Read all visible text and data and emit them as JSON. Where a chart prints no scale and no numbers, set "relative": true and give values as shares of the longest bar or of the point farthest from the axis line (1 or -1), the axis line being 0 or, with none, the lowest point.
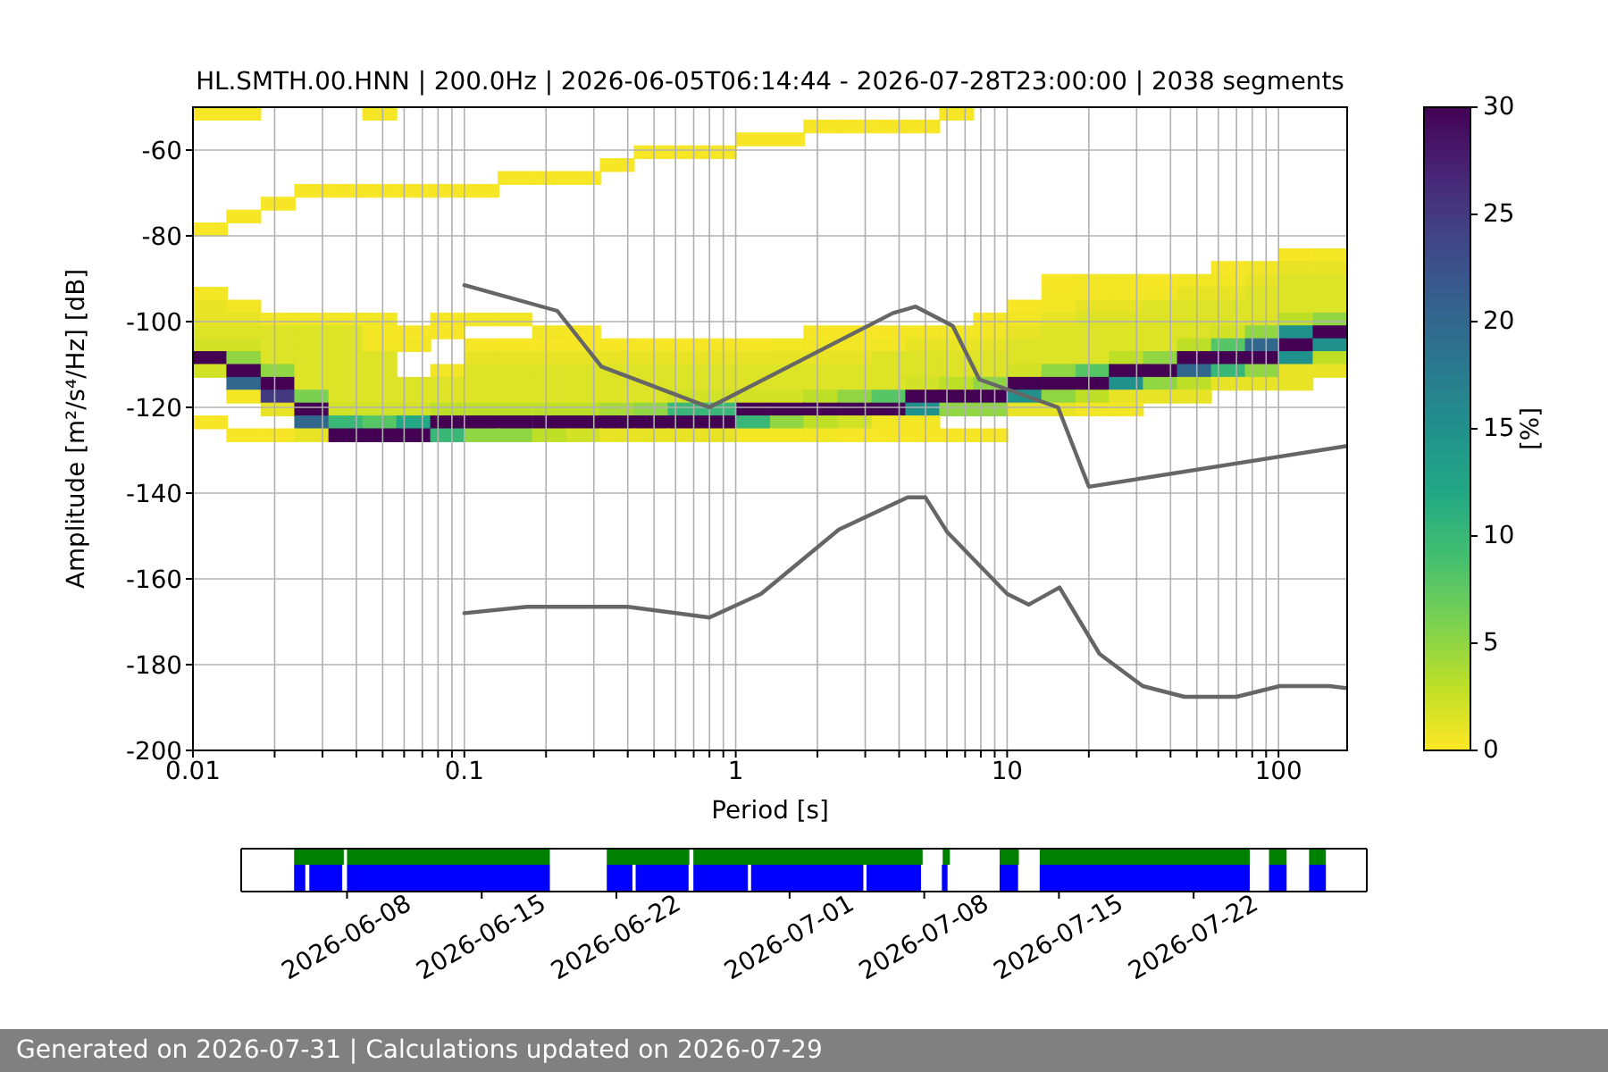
{
  "chart_data": [
    {
      "type": "scatter",
      "title": "HL.SMTH.00.HNN | 200.0Hz | 2026-06-05T06:14:44 - 2026-07-28T23:00:00 | 2038 segments",
      "xlabel": "Period [s]",
      "ylabel": "Amplitude [m²/s⁴/Hz] [dB]",
      "clabel": "[%]",
      "xlim": [
        0.01,
        179
      ],
      "ylim": [
        -200,
        -50
      ],
      "log": "x",
      "xticks": [
        0.01,
        {
          "value": 0.02,
          "label": null
        },
        {
          "value": 0.03,
          "label": null
        },
        {
          "value": 0.04,
          "label": null
        },
        {
          "value": 0.05,
          "label": null
        },
        {
          "value": 0.06,
          "label": null
        },
        {
          "value": 0.07,
          "label": null
        },
        {
          "value": 0.08,
          "label": null
        },
        {
          "value": 0.09,
          "label": null
        },
        0.1,
        {
          "value": 0.2,
          "label": null
        },
        {
          "value": 0.3,
          "label": null
        },
        {
          "value": 0.4,
          "label": null
        },
        {
          "value": 0.5,
          "label": null
        },
        {
          "value": 0.6,
          "label": null
        },
        {
          "value": 0.7,
          "label": null
        },
        {
          "value": 0.8,
          "label": null
        },
        {
          "value": 0.9,
          "label": null
        },
        1,
        {
          "value": 2,
          "label": null
        },
        {
          "value": 3,
          "label": null
        },
        {
          "value": 4,
          "label": null
        },
        {
          "value": 5,
          "label": null
        },
        {
          "value": 6,
          "label": null
        },
        {
          "value": 7,
          "label": null
        },
        {
          "value": 8,
          "label": null
        },
        {
          "value": 9,
          "label": null
        },
        10,
        {
          "value": 20,
          "label": null
        },
        {
          "value": 30,
          "label": null
        },
        {
          "value": 40,
          "label": null
        },
        {
          "value": 50,
          "label": null
        },
        {
          "value": 60,
          "label": null
        },
        {
          "value": 70,
          "label": null
        },
        {
          "value": 80,
          "label": null
        },
        {
          "value": 90,
          "label": null
        },
        100
      ],
      "yticks": [
        -200,
        -180,
        -160,
        -140,
        -120,
        -100,
        -80,
        -60
      ],
      "grid": true,
      "clim": [
        0,
        30
      ],
      "cticks": [
        0,
        5,
        10,
        15,
        20,
        25,
        30
      ],
      "marker": "square",
      "x": [
        0.0116,
        0.0154,
        0.0488,
        6.52,
        2.06,
        2.75,
        3.67,
        4.89,
        1.16,
        1.55,
        0.488,
        0.651,
        0.869,
        0.366,
        0.154,
        0.206,
        0.275,
        0.0274,
        0.0366,
        0.0488,
        0.0651,
        0.0868,
        0.116,
        0.0206,
        0.0154,
        0.0116,
        116,
        155,
        65.4,
        87.2,
        116,
        155,
        15.5,
        20.7,
        27.5,
        36.7,
        49,
        65.4,
        87.2,
        116,
        155,
        0.0116,
        15.5,
        20.7,
        27.5,
        36.7,
        49,
        65.4,
        87.2,
        116,
        155,
        0.0116,
        0.0154,
        11.6,
        15.5,
        20.7,
        27.5,
        36.7,
        49,
        65.4,
        87.2,
        116,
        155,
        0.0116,
        0.0154,
        0.0206,
        0.0274,
        0.0366,
        0.0488,
        0.0868,
        0.116,
        0.154,
        8.7,
        11.6,
        15.5,
        20.7,
        27.5,
        36.7,
        49,
        65.4,
        87.2,
        116,
        155,
        0.0116,
        0.0154,
        0.0206,
        0.0274,
        0.0366,
        0.0488,
        0.0651,
        0.0868,
        0.206,
        0.275,
        2.06,
        2.75,
        3.67,
        4.89,
        6.52,
        8.7,
        11.6,
        15.5,
        20.7,
        27.5,
        36.7,
        49,
        65.4,
        87.2,
        116,
        155,
        0.0116,
        0.0154,
        0.0206,
        0.0274,
        0.0366,
        0.0488,
        0.0651,
        0.116,
        0.154,
        0.206,
        0.275,
        0.366,
        0.488,
        0.651,
        0.869,
        1.16,
        1.55,
        2.06,
        2.75,
        3.67,
        4.89,
        6.52,
        8.7,
        11.6,
        15.5,
        20.7,
        27.5,
        36.7,
        49,
        65.4,
        87.2,
        116,
        155,
        0.0116,
        0.0154,
        0.0206,
        0.0274,
        0.0366,
        0.0488,
        0.116,
        0.154,
        0.206,
        0.275,
        0.366,
        0.488,
        0.651,
        0.869,
        1.16,
        1.55,
        2.06,
        2.75,
        3.67,
        4.89,
        6.52,
        8.7,
        11.6,
        15.5,
        20.7,
        27.5,
        36.7,
        49,
        65.4,
        87.2,
        116,
        155,
        0.0116,
        0.0154,
        0.0206,
        0.0274,
        0.0366,
        0.0488,
        0.0868,
        0.116,
        0.154,
        0.206,
        0.275,
        0.366,
        0.488,
        0.651,
        0.869,
        1.16,
        1.55,
        2.06,
        2.75,
        3.67,
        4.89,
        6.52,
        8.7,
        11.6,
        15.5,
        20.7,
        27.5,
        36.7,
        49,
        65.4,
        87.2,
        116,
        155,
        0.0154,
        0.0206,
        0.0274,
        0.0366,
        0.0488,
        0.0651,
        0.0868,
        0.116,
        0.154,
        0.206,
        0.275,
        0.366,
        0.488,
        0.651,
        0.869,
        1.16,
        1.55,
        2.06,
        2.75,
        3.67,
        4.89,
        6.52,
        8.7,
        11.6,
        15.5,
        20.7,
        27.5,
        36.7,
        49,
        65.4,
        87.2,
        116,
        0.0154,
        0.0206,
        0.0274,
        0.0366,
        0.0488,
        0.0651,
        0.0868,
        0.116,
        0.154,
        0.206,
        0.275,
        0.366,
        0.488,
        0.651,
        0.869,
        1.16,
        1.55,
        2.06,
        2.75,
        3.67,
        4.89,
        6.52,
        8.7,
        11.6,
        15.5,
        20.7,
        27.5,
        36.7,
        49,
        0.0206,
        0.0274,
        0.0366,
        0.0488,
        0.0651,
        0.0868,
        0.116,
        0.154,
        0.206,
        0.275,
        0.366,
        0.488,
        0.651,
        0.869,
        1.16,
        1.55,
        2.06,
        2.75,
        3.67,
        4.89,
        6.52,
        8.7,
        11.6,
        15.5,
        20.7,
        27.5,
        0.0116,
        0.0274,
        0.0366,
        0.0488,
        0.0651,
        0.0868,
        0.116,
        0.154,
        0.206,
        0.275,
        0.366,
        0.488,
        0.651,
        0.869,
        1.16,
        1.55,
        2.06,
        2.75,
        3.67,
        4.89,
        0.0154,
        0.0206,
        0.0274,
        0.0366,
        0.0488,
        0.0651,
        0.0868,
        0.116,
        0.154,
        0.206,
        0.275,
        0.366,
        0.488,
        0.651,
        0.869,
        1.16,
        1.55,
        2.06,
        2.75,
        3.67,
        4.89,
        6.52,
        8.7
      ],
      "values": [
        -51.5,
        -51.5,
        -51.5,
        -51.5,
        -54.5,
        -54.5,
        -54.5,
        -54.5,
        -57.5,
        -57.5,
        -60.5,
        -60.5,
        -60.5,
        -63.5,
        -66.5,
        -66.5,
        -66.5,
        -69.5,
        -69.5,
        -69.5,
        -69.5,
        -69.5,
        -69.5,
        -72.5,
        -75.5,
        -78.5,
        -84.5,
        -84.5,
        -87.5,
        -87.5,
        -87.5,
        -87.5,
        -90.5,
        -90.5,
        -90.5,
        -90.5,
        -90.5,
        -90.5,
        -90.5,
        -90.5,
        -90.5,
        -93.5,
        -93.5,
        -93.5,
        -93.5,
        -93.5,
        -93.5,
        -93.5,
        -93.5,
        -93.5,
        -93.5,
        -96.5,
        -96.5,
        -96.5,
        -96.5,
        -96.5,
        -96.5,
        -96.5,
        -96.5,
        -96.5,
        -96.5,
        -96.5,
        -96.5,
        -99.5,
        -99.5,
        -99.5,
        -99.5,
        -99.5,
        -99.5,
        -99.5,
        -99.5,
        -99.5,
        -99.5,
        -99.5,
        -99.5,
        -99.5,
        -99.5,
        -99.5,
        -99.5,
        -99.5,
        -99.5,
        -99.5,
        -99.5,
        -102.5,
        -102.5,
        -102.5,
        -102.5,
        -102.5,
        -102.5,
        -102.5,
        -102.5,
        -102.5,
        -102.5,
        -102.5,
        -102.5,
        -102.5,
        -102.5,
        -102.5,
        -102.5,
        -102.5,
        -102.5,
        -102.5,
        -102.5,
        -102.5,
        -102.5,
        -102.5,
        -102.5,
        -102.5,
        -102.5,
        -105.5,
        -105.5,
        -105.5,
        -105.5,
        -105.5,
        -105.5,
        -105.5,
        -105.5,
        -105.5,
        -105.5,
        -105.5,
        -105.5,
        -105.5,
        -105.5,
        -105.5,
        -105.5,
        -105.5,
        -105.5,
        -105.5,
        -105.5,
        -105.5,
        -105.5,
        -105.5,
        -105.5,
        -105.5,
        -105.5,
        -105.5,
        -105.5,
        -105.5,
        -105.5,
        -105.5,
        -105.5,
        -105.5,
        -108.5,
        -108.5,
        -108.5,
        -108.5,
        -108.5,
        -108.5,
        -108.5,
        -108.5,
        -108.5,
        -108.5,
        -108.5,
        -108.5,
        -108.5,
        -108.5,
        -108.5,
        -108.5,
        -108.5,
        -108.5,
        -108.5,
        -108.5,
        -108.5,
        -108.5,
        -108.5,
        -108.5,
        -108.5,
        -108.5,
        -108.5,
        -108.5,
        -108.5,
        -108.5,
        -108.5,
        -108.5,
        -111.5,
        -111.5,
        -111.5,
        -111.5,
        -111.5,
        -111.5,
        -111.5,
        -111.5,
        -111.5,
        -111.5,
        -111.5,
        -111.5,
        -111.5,
        -111.5,
        -111.5,
        -111.5,
        -111.5,
        -111.5,
        -111.5,
        -111.5,
        -111.5,
        -111.5,
        -111.5,
        -111.5,
        -111.5,
        -111.5,
        -111.5,
        -111.5,
        -111.5,
        -111.5,
        -111.5,
        -111.5,
        -111.5,
        -114.5,
        -114.5,
        -114.5,
        -114.5,
        -114.5,
        -114.5,
        -114.5,
        -114.5,
        -114.5,
        -114.5,
        -114.5,
        -114.5,
        -114.5,
        -114.5,
        -114.5,
        -114.5,
        -114.5,
        -114.5,
        -114.5,
        -114.5,
        -114.5,
        -114.5,
        -114.5,
        -114.5,
        -114.5,
        -114.5,
        -114.5,
        -114.5,
        -114.5,
        -114.5,
        -114.5,
        -114.5,
        -117.5,
        -117.5,
        -117.5,
        -117.5,
        -117.5,
        -117.5,
        -117.5,
        -117.5,
        -117.5,
        -117.5,
        -117.5,
        -117.5,
        -117.5,
        -117.5,
        -117.5,
        -117.5,
        -117.5,
        -117.5,
        -117.5,
        -117.5,
        -117.5,
        -117.5,
        -117.5,
        -117.5,
        -117.5,
        -117.5,
        -117.5,
        -117.5,
        -117.5,
        -120.5,
        -120.5,
        -120.5,
        -120.5,
        -120.5,
        -120.5,
        -120.5,
        -120.5,
        -120.5,
        -120.5,
        -120.5,
        -120.5,
        -120.5,
        -120.5,
        -120.5,
        -120.5,
        -120.5,
        -120.5,
        -120.5,
        -120.5,
        -120.5,
        -120.5,
        -120.5,
        -120.5,
        -120.5,
        -120.5,
        -123.5,
        -123.5,
        -123.5,
        -123.5,
        -123.5,
        -123.5,
        -123.5,
        -123.5,
        -123.5,
        -123.5,
        -123.5,
        -123.5,
        -123.5,
        -123.5,
        -123.5,
        -123.5,
        -123.5,
        -123.5,
        -123.5,
        -123.5,
        -126.5,
        -126.5,
        -126.5,
        -126.5,
        -126.5,
        -126.5,
        -126.5,
        -126.5,
        -126.5,
        -126.5,
        -126.5,
        -126.5,
        -126.5,
        -126.5,
        -126.5,
        -126.5,
        -126.5,
        -126.5,
        -126.5,
        -126.5,
        -126.5,
        -126.5,
        -126.5
      ],
      "colors": [
        "#f7e625",
        "#f7e625",
        "#f7e625",
        "#f7e625",
        "#f7e625",
        "#f7e625",
        "#f7e625",
        "#f7e625",
        "#f7e625",
        "#f7e625",
        "#f7e625",
        "#f7e625",
        "#f7e625",
        "#f7e625",
        "#f7e625",
        "#f7e625",
        "#f7e625",
        "#f7e625",
        "#f7e625",
        "#f7e625",
        "#f7e625",
        "#f7e625",
        "#f7e625",
        "#f7e625",
        "#f7e625",
        "#f7e625",
        "#f7e625",
        "#f2e625",
        "#f7e625",
        "#f2e625",
        "#e8e425",
        "#e8e425",
        "#f7e625",
        "#f2e625",
        "#f2e625",
        "#f7e625",
        "#f2e625",
        "#f2e625",
        "#e8e425",
        "#dde326",
        "#dde326",
        "#f2e625",
        "#f2e625",
        "#f2e625",
        "#f2e625",
        "#f2e625",
        "#e8e425",
        "#e8e425",
        "#dde326",
        "#dde326",
        "#dde326",
        "#e8e425",
        "#f2e625",
        "#f7e625",
        "#f2e625",
        "#e8e425",
        "#e8e425",
        "#dde326",
        "#dde326",
        "#dde326",
        "#dde326",
        "#dde326",
        "#dde326",
        "#e8e425",
        "#e8e425",
        "#f2e625",
        "#f2e625",
        "#f2e625",
        "#f2e625",
        "#f7e625",
        "#f2e625",
        "#f2e625",
        "#f7e625",
        "#f2e625",
        "#e8e425",
        "#dde326",
        "#dde326",
        "#dde326",
        "#dde326",
        "#dde326",
        "#dde326",
        "#bddf26",
        "#90d643",
        "#dde326",
        "#dde326",
        "#dde326",
        "#dde326",
        "#dde326",
        "#f2e625",
        "#f7e625",
        "#f7e625",
        "#f2e625",
        "#f7e625",
        "#f7e625",
        "#f7e625",
        "#f7e625",
        "#f2e625",
        "#f2e625",
        "#f2e625",
        "#e8e425",
        "#dde326",
        "#dde326",
        "#dde326",
        "#dde326",
        "#dde326",
        "#d2e226",
        "#90d643",
        "#21918c",
        "#440154",
        "#d2e226",
        "#d2e226",
        "#dde326",
        "#dde326",
        "#dde326",
        "#f2e625",
        "#f2e625",
        "#f7e625",
        "#f7e625",
        "#f7e625",
        "#f7e625",
        "#f7e625",
        "#f7e625",
        "#f7e625",
        "#f7e625",
        "#f7e625",
        "#f2e625",
        "#f2e625",
        "#f2e625",
        "#f2e625",
        "#e8e425",
        "#e8e425",
        "#e8e425",
        "#dde326",
        "#dde326",
        "#dde326",
        "#dde326",
        "#dde326",
        "#bddf26",
        "#56c566",
        "#31678d",
        "#440154",
        "#21918c",
        "#440154",
        "#90d643",
        "#dde326",
        "#dde326",
        "#dde326",
        "#dde326",
        "#e8e425",
        "#e8e425",
        "#e8e425",
        "#e8e425",
        "#e8e425",
        "#e8e425",
        "#e8e425",
        "#e8e425",
        "#e8e425",
        "#e8e425",
        "#e8e425",
        "#e8e425",
        "#dde326",
        "#dde326",
        "#dde326",
        "#dde326",
        "#dde326",
        "#dde326",
        "#dde326",
        "#bddf26",
        "#90d643",
        "#440154",
        "#440154",
        "#440154",
        "#21918c",
        "#bddf26",
        "#d2e226",
        "#440154",
        "#90d643",
        "#dde326",
        "#dde326",
        "#dde326",
        "#f2e625",
        "#dde326",
        "#dde326",
        "#dde326",
        "#dde326",
        "#dde326",
        "#dde326",
        "#dde326",
        "#dde326",
        "#dde326",
        "#dde326",
        "#dde326",
        "#dde326",
        "#dde326",
        "#dde326",
        "#dde326",
        "#dde326",
        "#d2e226",
        "#90d643",
        "#56c566",
        "#440154",
        "#440154",
        "#31678d",
        "#39b777",
        "#90d643",
        "#e8e425",
        "#e8e425",
        "#31678d",
        "#440154",
        "#dde326",
        "#dde326",
        "#dde326",
        "#dde326",
        "#dde326",
        "#dde326",
        "#dde326",
        "#dde326",
        "#dde326",
        "#dde326",
        "#dde326",
        "#dde326",
        "#dde326",
        "#dde326",
        "#dde326",
        "#dde326",
        "#dde326",
        "#dde326",
        "#d2e226",
        "#bddf26",
        "#90d643",
        "#440154",
        "#440154",
        "#440154",
        "#21918c",
        "#90d643",
        "#bddf26",
        "#e8e425",
        "#e8e425",
        "#e8e425",
        "#f2e625",
        "#433981",
        "#7ad151",
        "#dde326",
        "#dde326",
        "#dde326",
        "#dde326",
        "#dde326",
        "#dde326",
        "#dde326",
        "#dde326",
        "#dde326",
        "#dde326",
        "#d2e226",
        "#d2e226",
        "#d2e226",
        "#d2e226",
        "#bddf26",
        "#90d643",
        "#56c566",
        "#440154",
        "#440154",
        "#440154",
        "#21918c",
        "#90d643",
        "#bddf26",
        "#e8e425",
        "#e8e425",
        "#e8e425",
        "#e8e425",
        "#440154",
        "#d2e226",
        "#d2e226",
        "#d2e226",
        "#bddf26",
        "#bddf26",
        "#bddf26",
        "#bddf26",
        "#bddf26",
        "#a7da34",
        "#90d643",
        "#39b777",
        "#39b777",
        "#440154",
        "#440154",
        "#440154",
        "#440154",
        "#440154",
        "#21918c",
        "#90d643",
        "#90d643",
        "#e8e425",
        "#e8e425",
        "#f2e625",
        "#f2e625",
        "#f7e625",
        "#31678d",
        "#39b777",
        "#56c566",
        "#22a884",
        "#440154",
        "#440154",
        "#440154",
        "#440154",
        "#440154",
        "#440154",
        "#440154",
        "#440154",
        "#440154",
        "#39b777",
        "#90d643",
        "#bddf26",
        "#d2e226",
        "#f2e625",
        "#f2e625",
        "#f7e625",
        "#f7e625",
        "#e8e425",
        "#440154",
        "#440154",
        "#440154",
        "#39b777",
        "#90d643",
        "#90d643",
        "#bddf26",
        "#d2e226",
        "#e8e425",
        "#e8e425",
        "#e8e425",
        "#e8e425",
        "#f2e625",
        "#f2e625",
        "#f2e625",
        "#f7e625",
        "#f7e625",
        "#f7e625",
        "#f7e625",
        "#f7e625"
      ],
      "series": [
        {
          "type": "line",
          "color": "#666666",
          "marker": "none",
          "x": [
            0.1,
            0.22,
            0.32,
            0.8,
            3.8,
            4.6,
            6.3,
            7.9,
            15.4,
            20,
            179
          ],
          "values": [
            -91.5,
            -97.5,
            -110.5,
            -120,
            -98,
            -96.5,
            -101,
            -113.5,
            -120,
            -138.5,
            -129
          ]
        },
        {
          "type": "line",
          "color": "#666666",
          "marker": "none",
          "x": [
            0.1,
            0.17,
            0.4,
            0.8,
            1.24,
            2.4,
            4.3,
            5,
            6,
            10,
            12,
            15.6,
            21.9,
            31.6,
            45,
            70,
            101,
            154,
            179
          ],
          "values": [
            -168,
            -166.5,
            -166.5,
            -169,
            -163.5,
            -148.5,
            -141,
            -141,
            -149,
            -163.5,
            -166,
            -162,
            -177.5,
            -185,
            -187.5,
            -187.5,
            -185,
            -185,
            -185.5
          ]
        }
      ]
    },
    {
      "type": "area",
      "relative": true,
      "color": "#008000",
      "xlim": [
        "2026-06-02T12:00",
        "2026-07-31T00:00"
      ],
      "tick_labels": false,
      "x": [
        "2026-06-05T06:00",
        "2026-06-05T06:00",
        "2026-06-07T20:00",
        "2026-06-07T20:00",
        "2026-06-08T00:00",
        "2026-06-08T00:00",
        "2026-06-18T13:00",
        "2026-06-18T13:00",
        "2026-06-21T12:00",
        "2026-06-21T12:00",
        "2026-06-25T19:00",
        "2026-06-25T19:00",
        "2026-06-26T00:00",
        "2026-06-26T00:00",
        "2026-07-07T22:00",
        "2026-07-07T22:00",
        "2026-07-08T23:00",
        "2026-07-08T23:00",
        "2026-07-09T08:00",
        "2026-07-09T08:00",
        "2026-07-11T22:00",
        "2026-07-11T22:00",
        "2026-07-12T22:00",
        "2026-07-12T22:00",
        "2026-07-14T00:00",
        "2026-07-14T00:00",
        "2026-07-24T22:00",
        "2026-07-24T22:00",
        "2026-07-25T22:00",
        "2026-07-25T22:00",
        "2026-07-26T20:00",
        "2026-07-26T20:00",
        "2026-07-28T00:00",
        "2026-07-28T00:00",
        "2026-07-28T21:00",
        "2026-07-28T21:00"
      ],
      "values": [
        0,
        1,
        1,
        0,
        0,
        1,
        1,
        0,
        0,
        1,
        1,
        0,
        0,
        1,
        1,
        0,
        0,
        1,
        1,
        0,
        0,
        1,
        1,
        0,
        0,
        1,
        1,
        0,
        0,
        1,
        1,
        0,
        0,
        1,
        1,
        0
      ]
    },
    {
      "type": "area",
      "relative": true,
      "color": "#0000ff",
      "xlim": [
        "2026-06-02T12:00",
        "2026-07-31T00:00"
      ],
      "tick_labels": "x",
      "xticks": [
        "2026-06-08",
        "2026-06-15",
        "2026-06-22",
        "2026-07-01",
        "2026-07-08",
        "2026-07-15",
        "2026-07-22"
      ],
      "x": [
        "2026-06-05T06:00",
        "2026-06-05T06:00",
        "2026-06-05T20:00",
        "2026-06-05T20:00",
        "2026-06-06T01:00",
        "2026-06-06T01:00",
        "2026-06-07T18:00",
        "2026-06-07T18:00",
        "2026-06-08T00:00",
        "2026-06-08T00:00",
        "2026-06-18T13:00",
        "2026-06-18T13:00",
        "2026-06-21T12:00",
        "2026-06-21T12:00",
        "2026-06-22T20:00",
        "2026-06-22T20:00",
        "2026-06-23T00:00",
        "2026-06-23T00:00",
        "2026-06-25T18:00",
        "2026-06-25T18:00",
        "2026-06-26T00:00",
        "2026-06-26T00:00",
        "2026-06-28T20:00",
        "2026-06-28T20:00",
        "2026-06-29T00:00",
        "2026-06-29T00:00",
        "2026-07-04T20:00",
        "2026-07-04T20:00",
        "2026-07-05T00:00",
        "2026-07-05T00:00",
        "2026-07-07T20:00",
        "2026-07-07T20:00",
        "2026-07-08T22:00",
        "2026-07-08T22:00",
        "2026-07-09T05:00",
        "2026-07-09T05:00",
        "2026-07-11T22:00",
        "2026-07-11T22:00",
        "2026-07-12T21:00",
        "2026-07-12T21:00",
        "2026-07-14T00:00",
        "2026-07-14T00:00",
        "2026-07-24T22:00",
        "2026-07-24T22:00",
        "2026-07-25T22:00",
        "2026-07-25T22:00",
        "2026-07-26T20:00",
        "2026-07-26T20:00",
        "2026-07-28T00:00",
        "2026-07-28T00:00",
        "2026-07-28T21:00",
        "2026-07-28T21:00"
      ],
      "values": [
        0,
        1,
        1,
        0,
        0,
        1,
        1,
        0,
        0,
        1,
        1,
        0,
        0,
        1,
        1,
        0,
        0,
        1,
        1,
        0,
        0,
        1,
        1,
        0,
        0,
        1,
        1,
        0,
        0,
        1,
        1,
        0,
        0,
        1,
        1,
        0,
        0,
        1,
        1,
        0,
        0,
        1,
        1,
        0,
        0,
        1,
        1,
        0,
        0,
        1,
        1,
        0
      ],
      "annotations": [
        "Generated on 2026-07-31 | Calculations updated on 2026-07-29"
      ]
    }
  ]
}
